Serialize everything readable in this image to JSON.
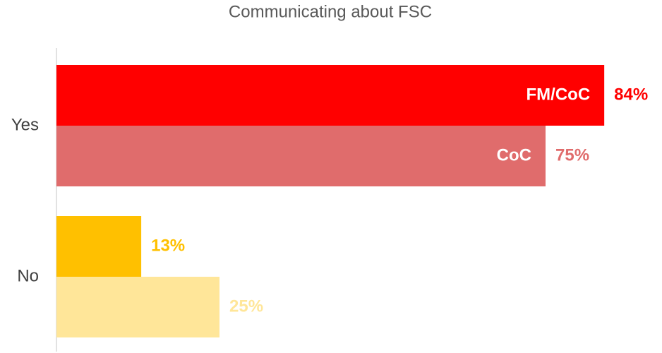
{
  "chart_data": {
    "type": "bar",
    "orientation": "horizontal",
    "title": "Communicating about FSC",
    "categories": [
      "Yes",
      "No"
    ],
    "series": [
      {
        "name": "FM/CoC",
        "colors": [
          "#ff0000",
          "#ffc000"
        ],
        "values": [
          84,
          13
        ],
        "value_labels": [
          "84%",
          "13%"
        ]
      },
      {
        "name": "CoC",
        "colors": [
          "#e06c6c",
          "#ffe699"
        ],
        "values": [
          75,
          25
        ],
        "value_labels": [
          "75%",
          "25%"
        ]
      }
    ],
    "xlim": [
      0,
      100
    ]
  }
}
